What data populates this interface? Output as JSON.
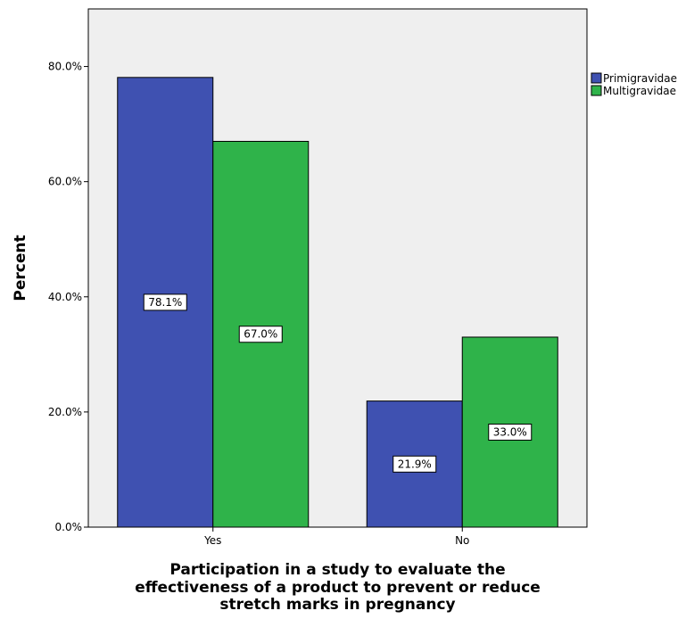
{
  "chart_data": {
    "type": "bar",
    "categories": [
      "Yes",
      "No"
    ],
    "series": [
      {
        "name": "Primigravidae",
        "values": [
          78.1,
          21.9
        ],
        "labels": [
          "78.1%",
          "21.9%"
        ],
        "color": "#3f51b1"
      },
      {
        "name": "Multigravidae",
        "values": [
          67.0,
          33.0
        ],
        "labels": [
          "67.0%",
          "33.0%"
        ],
        "color": "#2fb34a"
      }
    ],
    "ylabel": "Percent",
    "xlabel_lines": [
      "Participation in a study to evaluate the",
      "effectiveness of a product to prevent or reduce",
      "stretch marks in pregnancy"
    ],
    "yticks": [
      "0.0%",
      "20.0%",
      "40.0%",
      "60.0%",
      "80.0%"
    ],
    "ylim": [
      0,
      90
    ],
    "legend_position": "right",
    "plot_background": "#efefef",
    "grid": false
  }
}
